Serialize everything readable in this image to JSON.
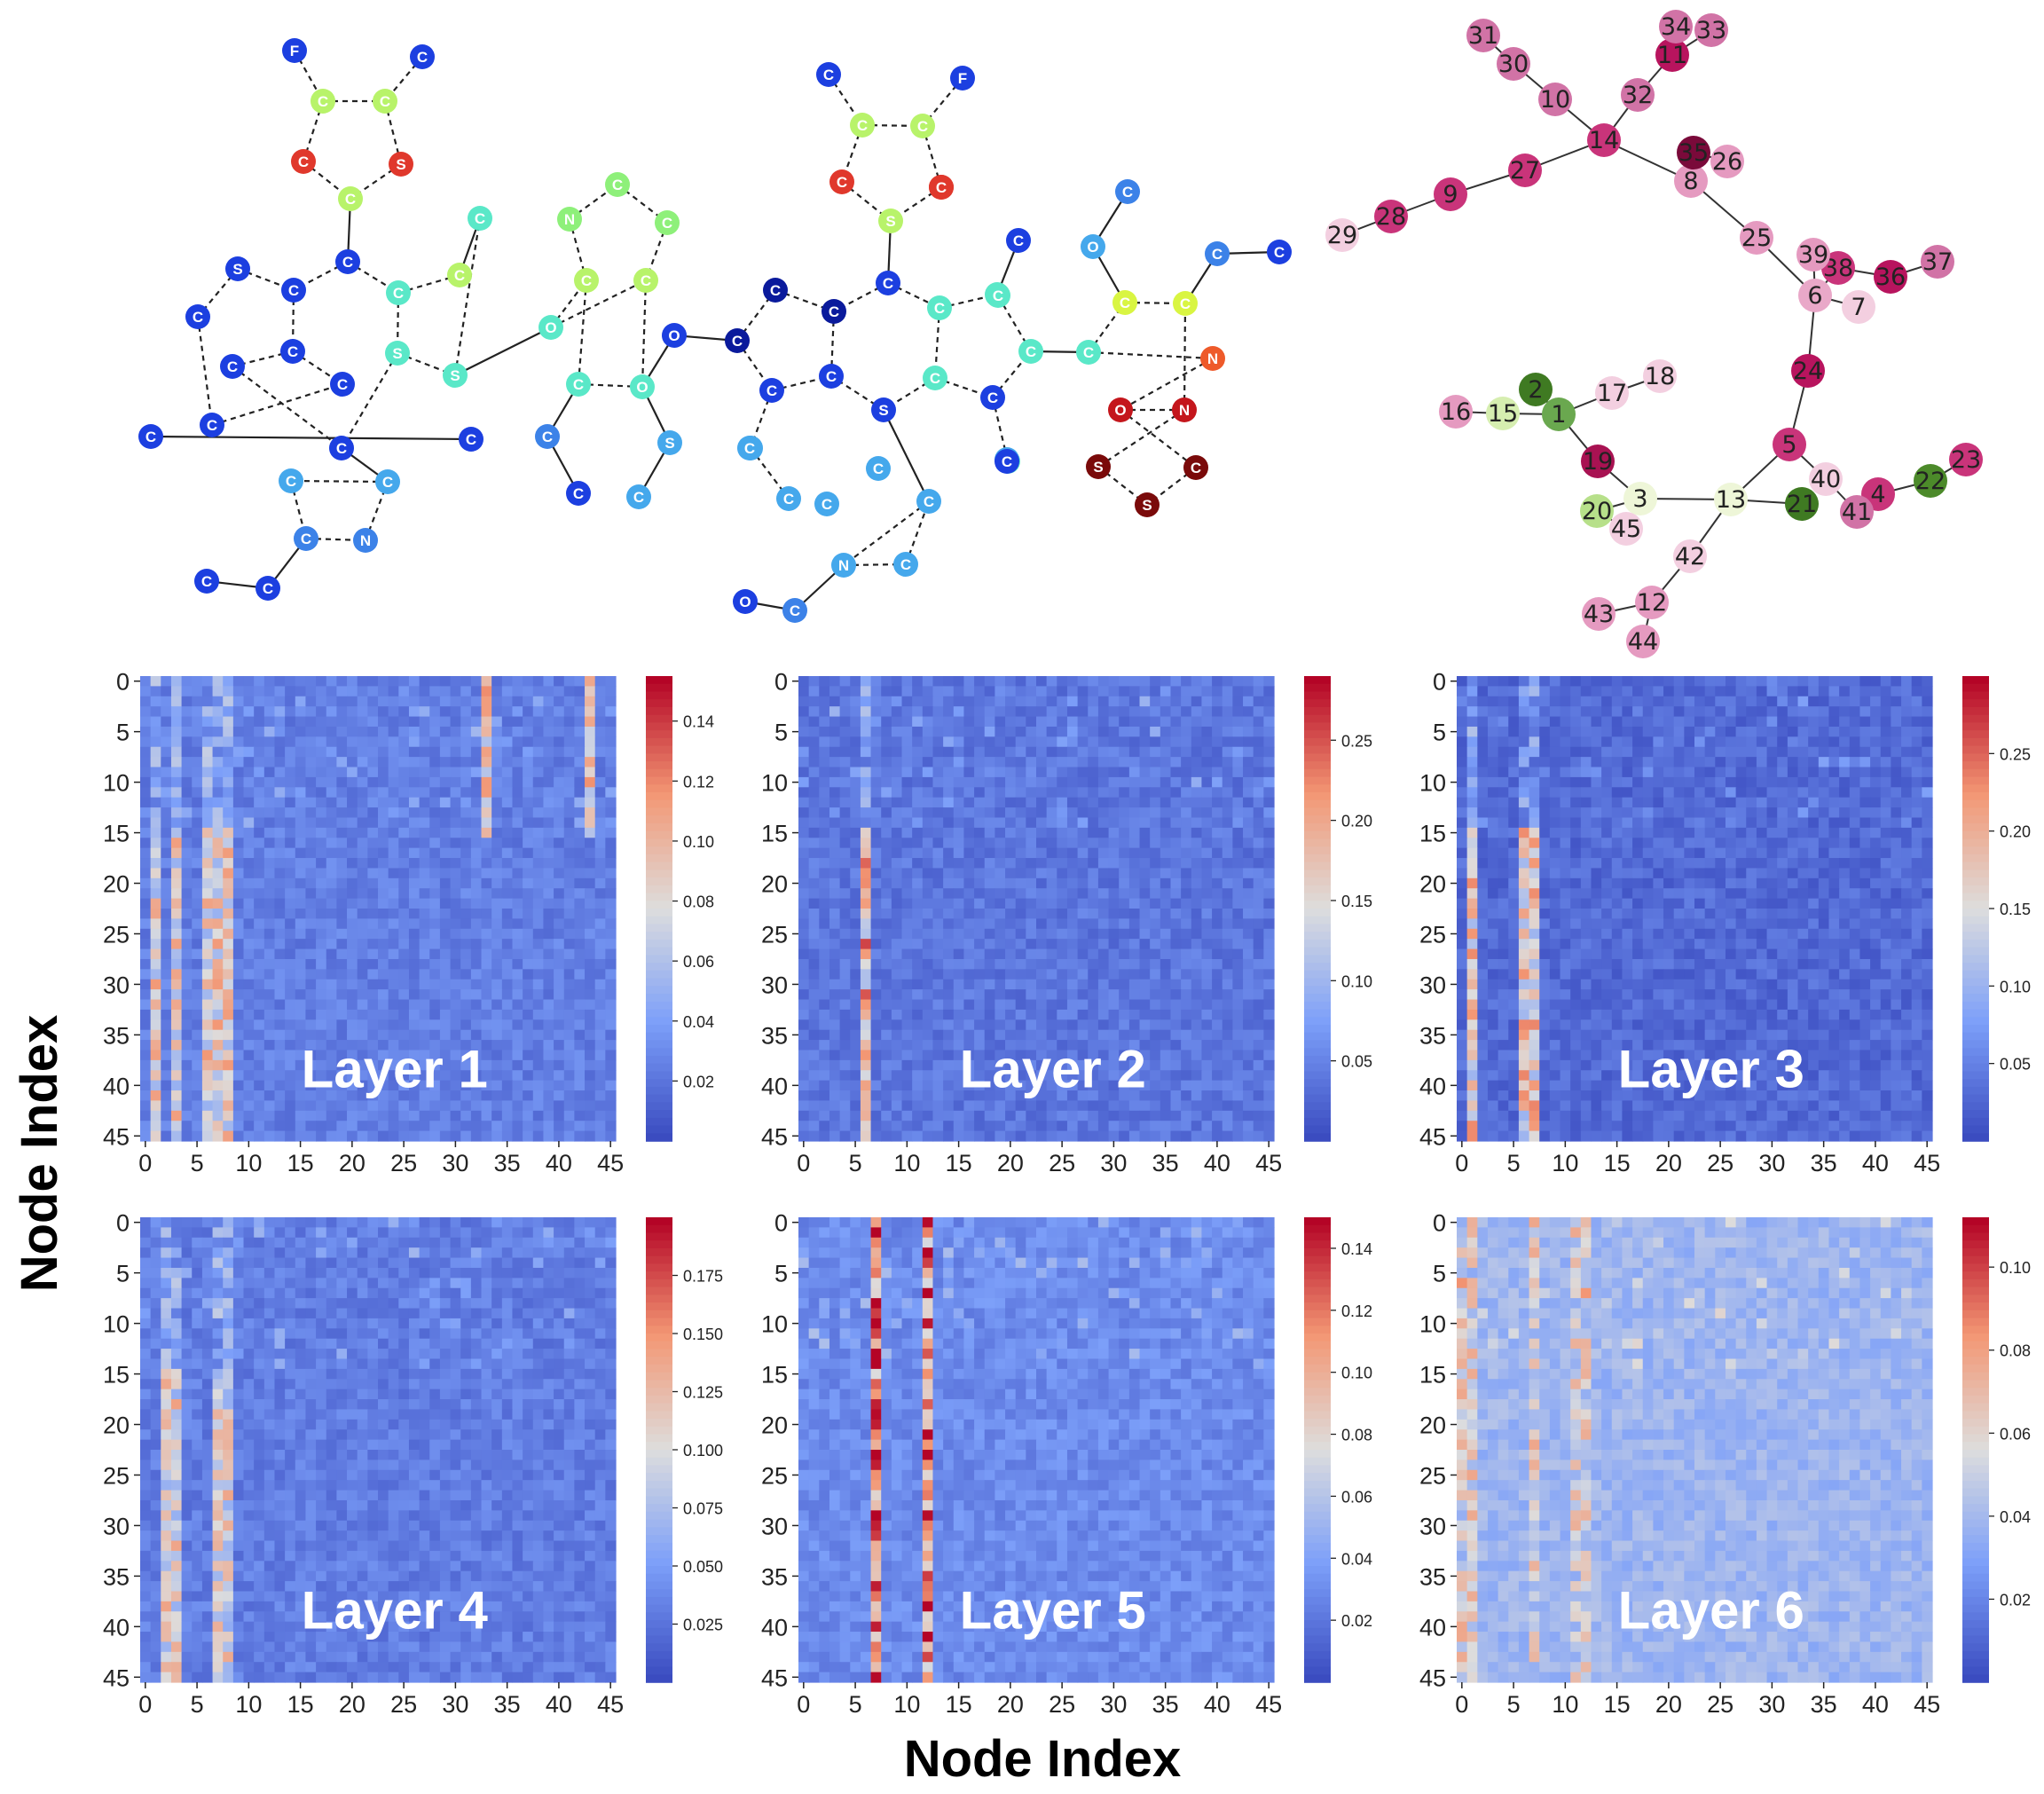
{
  "chart_data": {
    "type": "heatmap",
    "xlabel": "Node Index",
    "ylabel": "Node Index",
    "molecule_atoms": [
      "F",
      "C",
      "C",
      "C",
      "C",
      "S",
      "C",
      "C",
      "S",
      "C",
      "C",
      "C",
      "C",
      "C",
      "C",
      "C",
      "S",
      "S",
      "C",
      "C",
      "C",
      "C",
      "C",
      "C",
      "C",
      "C",
      "N",
      "C",
      "C",
      "O",
      "N",
      "C",
      "C",
      "C",
      "C",
      "O",
      "C",
      "O",
      "C",
      "C",
      "S",
      "C",
      "C",
      "C",
      "C",
      "C",
      "C",
      "C",
      "C",
      "C",
      "F",
      "C",
      "C",
      "C",
      "C",
      "S",
      "C",
      "C",
      "C",
      "C",
      "C",
      "S",
      "C",
      "C",
      "C",
      "C",
      "C",
      "C",
      "C",
      "N",
      "C",
      "C",
      "O",
      "C",
      "O",
      "C",
      "C",
      "C",
      "C",
      "C",
      "N",
      "O",
      "N",
      "S",
      "C",
      "S",
      "C",
      "C",
      "C",
      "C"
    ],
    "tree_nodes": [
      "1",
      "2",
      "3",
      "4",
      "5",
      "6",
      "7",
      "8",
      "9",
      "10",
      "11",
      "12",
      "13",
      "14",
      "15",
      "16",
      "17",
      "18",
      "19",
      "20",
      "21",
      "22",
      "23",
      "24",
      "25",
      "26",
      "27",
      "28",
      "29",
      "30",
      "31",
      "32",
      "33",
      "34",
      "35",
      "36",
      "37",
      "38",
      "39",
      "40",
      "41",
      "42",
      "43",
      "44",
      "45"
    ],
    "heatmaps": [
      {
        "title": "Layer 1",
        "x_ticks": [
          "0",
          "5",
          "10",
          "15",
          "20",
          "25",
          "30",
          "35",
          "40",
          "45"
        ],
        "y_ticks": [
          "0",
          "5",
          "10",
          "15",
          "20",
          "25",
          "30",
          "35",
          "40",
          "45"
        ],
        "colorbar_ticks": [
          "0.02",
          "0.04",
          "0.06",
          "0.08",
          "0.10",
          "0.12",
          "0.14"
        ],
        "vmin": 0.0,
        "vmax": 0.155,
        "hot_columns": [
          1,
          3,
          6,
          7,
          8
        ],
        "hot_rows_from": 15,
        "hot_value": 0.09,
        "cell_range": [
          0.0,
          0.155
        ],
        "upper_hot_columns": [
          33,
          43
        ],
        "upper_hot_value": 0.1,
        "background": 0.02
      },
      {
        "title": "Layer 2",
        "x_ticks": [
          "0",
          "5",
          "10",
          "15",
          "20",
          "25",
          "30",
          "35",
          "40",
          "45"
        ],
        "y_ticks": [
          "0",
          "5",
          "10",
          "15",
          "20",
          "25",
          "30",
          "35",
          "40",
          "45"
        ],
        "colorbar_ticks": [
          "0.05",
          "0.10",
          "0.15",
          "0.20",
          "0.25"
        ],
        "vmin": 0.0,
        "vmax": 0.29,
        "hot_columns": [
          6
        ],
        "hot_rows_from": 15,
        "hot_value": 0.2,
        "cell_range": [
          0.0,
          0.29
        ],
        "upper_hot_columns": [],
        "upper_hot_value": 0.0,
        "background": 0.03
      },
      {
        "title": "Layer 3",
        "x_ticks": [
          "0",
          "5",
          "10",
          "15",
          "20",
          "25",
          "30",
          "35",
          "40",
          "45"
        ],
        "y_ticks": [
          "0",
          "5",
          "10",
          "15",
          "20",
          "25",
          "30",
          "35",
          "40",
          "45"
        ],
        "colorbar_ticks": [
          "0.05",
          "0.10",
          "0.15",
          "0.20",
          "0.25"
        ],
        "vmin": 0.0,
        "vmax": 0.3,
        "hot_columns": [
          1,
          6,
          7
        ],
        "hot_rows_from": 15,
        "hot_value": 0.18,
        "cell_range": [
          0.0,
          0.3
        ],
        "upper_hot_columns": [],
        "upper_hot_value": 0.0,
        "background": 0.02
      },
      {
        "title": "Layer 4",
        "x_ticks": [
          "0",
          "5",
          "10",
          "15",
          "20",
          "25",
          "30",
          "35",
          "40",
          "45"
        ],
        "y_ticks": [
          "0",
          "5",
          "10",
          "15",
          "20",
          "25",
          "30",
          "35",
          "40",
          "45"
        ],
        "colorbar_ticks": [
          "0.025",
          "0.050",
          "0.075",
          "0.100",
          "0.125",
          "0.150",
          "0.175"
        ],
        "vmin": 0.0,
        "vmax": 0.2,
        "hot_columns": [
          2,
          3,
          7,
          8
        ],
        "hot_rows_from": 15,
        "hot_value": 0.11,
        "cell_range": [
          0.0,
          0.2
        ],
        "upper_hot_columns": [],
        "upper_hot_value": 0.0,
        "background": 0.025
      },
      {
        "title": "Layer 5",
        "x_ticks": [
          "0",
          "5",
          "10",
          "15",
          "20",
          "25",
          "30",
          "35",
          "40",
          "45"
        ],
        "y_ticks": [
          "0",
          "5",
          "10",
          "15",
          "20",
          "25",
          "30",
          "35",
          "40",
          "45"
        ],
        "colorbar_ticks": [
          "0.02",
          "0.04",
          "0.06",
          "0.08",
          "0.10",
          "0.12",
          "0.14"
        ],
        "vmin": 0.0,
        "vmax": 0.15,
        "hot_columns": [
          7,
          12
        ],
        "hot_rows_from": 0,
        "hot_value": 0.13,
        "cell_range": [
          0.0,
          0.15
        ],
        "upper_hot_columns": [],
        "upper_hot_value": 0.0,
        "background": 0.025
      },
      {
        "title": "Layer 6",
        "x_ticks": [
          "0",
          "5",
          "10",
          "15",
          "20",
          "25",
          "30",
          "35",
          "40",
          "45"
        ],
        "y_ticks": [
          "0",
          "5",
          "10",
          "15",
          "20",
          "25",
          "30",
          "35",
          "40",
          "45"
        ],
        "colorbar_ticks": [
          "0.02",
          "0.04",
          "0.06",
          "0.08",
          "0.10"
        ],
        "vmin": 0.0,
        "vmax": 0.112,
        "hot_columns": [
          0,
          1,
          7,
          11,
          12
        ],
        "hot_rows_from": 0,
        "hot_value": 0.06,
        "cell_range": [
          0.0,
          0.112
        ],
        "upper_hot_columns": [],
        "upper_hot_value": 0.0,
        "background": 0.035
      }
    ]
  }
}
